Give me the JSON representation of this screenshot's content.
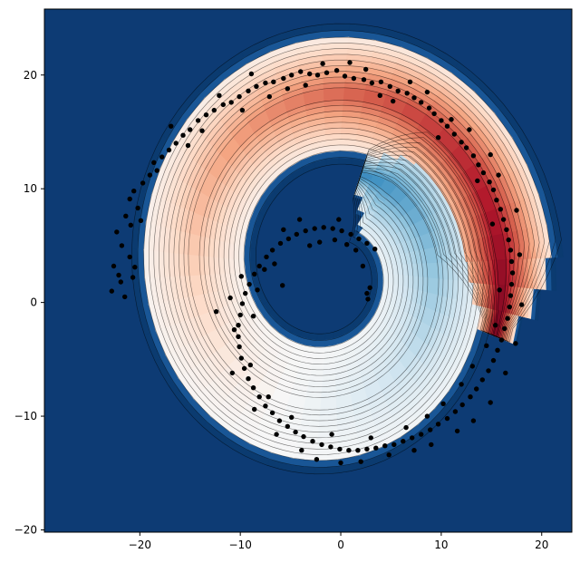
{
  "chart_data": {
    "type": "scatter",
    "subtype": "filled-contour-with-scatter",
    "title": "",
    "xlabel": "",
    "ylabel": "",
    "xlim": [
      -29.5,
      23.0
    ],
    "ylim": [
      -20.2,
      25.8
    ],
    "xticks": [
      -20,
      -10,
      0,
      10,
      20
    ],
    "yticks": [
      -20,
      -10,
      0,
      10,
      20
    ],
    "xtick_labels": [
      "−20",
      "−10",
      "0",
      "10",
      "20"
    ],
    "ytick_labels": [
      "−20",
      "−10",
      "0",
      "10",
      "20"
    ],
    "grid": false,
    "legend": "none",
    "colormap": "RdBu_r",
    "colors": {
      "background": "#0d3b74",
      "low": "#053061",
      "mid": "#f7f7f7",
      "high": "#67001f",
      "points": "#000000"
    },
    "spiral": {
      "center": [
        -1.0,
        3.0
      ],
      "inner_radius": 8.8,
      "outer_radius": 17.4,
      "start_angle_deg": 110,
      "end_angle_deg": 560,
      "value_start": 0.18,
      "value_end": 0.97
    },
    "points": [
      [
        -22.8,
        1.0
      ],
      [
        -22.1,
        2.4
      ],
      [
        -21.5,
        0.5
      ],
      [
        -22.6,
        3.2
      ],
      [
        -21.0,
        4.0
      ],
      [
        -20.5,
        3.1
      ],
      [
        -21.8,
        5.0
      ],
      [
        -22.3,
        6.2
      ],
      [
        -20.9,
        6.8
      ],
      [
        -21.4,
        7.6
      ],
      [
        -20.2,
        8.3
      ],
      [
        -21.0,
        9.1
      ],
      [
        -20.6,
        9.8
      ],
      [
        -19.7,
        10.5
      ],
      [
        -19.0,
        11.2
      ],
      [
        -18.6,
        12.3
      ],
      [
        -17.8,
        12.8
      ],
      [
        -17.1,
        13.4
      ],
      [
        -16.4,
        14.0
      ],
      [
        -15.7,
        14.7
      ],
      [
        -15.0,
        15.2
      ],
      [
        -14.2,
        16.0
      ],
      [
        -13.4,
        16.5
      ],
      [
        -12.6,
        16.9
      ],
      [
        -11.7,
        17.4
      ],
      [
        -10.9,
        17.6
      ],
      [
        -10.1,
        18.1
      ],
      [
        -9.2,
        18.6
      ],
      [
        -8.4,
        19.0
      ],
      [
        -7.5,
        19.3
      ],
      [
        -6.7,
        19.4
      ],
      [
        -5.7,
        19.7
      ],
      [
        -4.9,
        20.0
      ],
      [
        -4.0,
        20.3
      ],
      [
        -3.1,
        20.1
      ],
      [
        -2.3,
        20.0
      ],
      [
        -1.4,
        20.2
      ],
      [
        -0.4,
        20.4
      ],
      [
        0.4,
        19.9
      ],
      [
        1.3,
        19.7
      ],
      [
        2.3,
        19.6
      ],
      [
        3.1,
        19.3
      ],
      [
        4.0,
        19.4
      ],
      [
        4.9,
        19.0
      ],
      [
        5.7,
        18.6
      ],
      [
        6.6,
        18.4
      ],
      [
        7.3,
        18.0
      ],
      [
        8.0,
        17.6
      ],
      [
        8.8,
        17.1
      ],
      [
        9.3,
        16.6
      ],
      [
        10.0,
        16.0
      ],
      [
        10.6,
        15.5
      ],
      [
        11.3,
        14.8
      ],
      [
        12.0,
        14.1
      ],
      [
        12.5,
        13.6
      ],
      [
        13.2,
        12.9
      ],
      [
        13.7,
        12.1
      ],
      [
        14.2,
        11.4
      ],
      [
        14.8,
        10.6
      ],
      [
        15.2,
        9.9
      ],
      [
        15.5,
        9.0
      ],
      [
        15.9,
        8.2
      ],
      [
        16.2,
        7.3
      ],
      [
        16.5,
        6.4
      ],
      [
        16.7,
        5.5
      ],
      [
        16.9,
        4.6
      ],
      [
        17.0,
        3.6
      ],
      [
        17.1,
        2.6
      ],
      [
        17.0,
        1.6
      ],
      [
        16.9,
        0.6
      ],
      [
        16.8,
        -0.4
      ],
      [
        16.6,
        -1.4
      ],
      [
        16.3,
        -2.3
      ],
      [
        16.0,
        -3.3
      ],
      [
        15.6,
        -4.2
      ],
      [
        15.2,
        -5.1
      ],
      [
        14.7,
        -6.0
      ],
      [
        14.1,
        -6.8
      ],
      [
        13.5,
        -7.6
      ],
      [
        12.9,
        -8.3
      ],
      [
        12.1,
        -9.0
      ],
      [
        11.4,
        -9.6
      ],
      [
        10.6,
        -10.2
      ],
      [
        9.7,
        -10.7
      ],
      [
        8.9,
        -11.2
      ],
      [
        8.0,
        -11.6
      ],
      [
        7.1,
        -11.9
      ],
      [
        6.2,
        -12.2
      ],
      [
        5.3,
        -12.5
      ],
      [
        4.4,
        -12.6
      ],
      [
        3.5,
        -12.8
      ],
      [
        2.6,
        -12.9
      ],
      [
        1.7,
        -13.0
      ],
      [
        0.8,
        -13.0
      ],
      [
        -0.1,
        -12.9
      ],
      [
        -1.0,
        -12.7
      ],
      [
        -1.9,
        -12.5
      ],
      [
        -2.8,
        -12.2
      ],
      [
        -3.7,
        -11.8
      ],
      [
        -4.5,
        -11.4
      ],
      [
        -5.3,
        -10.9
      ],
      [
        -6.1,
        -10.4
      ],
      [
        -6.8,
        -9.7
      ],
      [
        -7.5,
        -9.1
      ],
      [
        -8.1,
        -8.3
      ],
      [
        -8.7,
        -7.5
      ],
      [
        -9.2,
        -6.7
      ],
      [
        -9.6,
        -5.8
      ],
      [
        -9.9,
        -4.9
      ],
      [
        -10.1,
        -3.9
      ],
      [
        -10.2,
        -3.0
      ],
      [
        -10.2,
        -2.0
      ],
      [
        -10.0,
        -1.1
      ],
      [
        -9.8,
        -0.1
      ],
      [
        -9.5,
        0.8
      ],
      [
        -9.1,
        1.6
      ],
      [
        -8.6,
        2.5
      ],
      [
        -8.1,
        3.2
      ],
      [
        -7.4,
        4.0
      ],
      [
        -6.8,
        4.6
      ],
      [
        -6.0,
        5.2
      ],
      [
        -5.2,
        5.6
      ],
      [
        -4.4,
        6.0
      ],
      [
        -3.5,
        6.3
      ],
      [
        -2.6,
        6.5
      ],
      [
        -1.7,
        6.6
      ],
      [
        -0.8,
        6.5
      ],
      [
        0.1,
        6.3
      ],
      [
        1.0,
        6.0
      ],
      [
        1.8,
        5.6
      ],
      [
        2.6,
        5.2
      ],
      [
        3.4,
        4.7
      ],
      [
        2.9,
        1.3
      ],
      [
        2.6,
        0.8
      ],
      [
        2.7,
        0.3
      ],
      [
        -21.9,
        1.8
      ],
      [
        -20.7,
        2.2
      ],
      [
        -19.9,
        7.2
      ],
      [
        -18.3,
        11.6
      ],
      [
        -16.9,
        15.5
      ],
      [
        -15.2,
        13.8
      ],
      [
        -13.8,
        15.1
      ],
      [
        -12.1,
        18.2
      ],
      [
        -9.8,
        16.9
      ],
      [
        -8.9,
        20.1
      ],
      [
        -7.1,
        18.1
      ],
      [
        -5.3,
        18.8
      ],
      [
        -3.5,
        19.1
      ],
      [
        -1.8,
        21.0
      ],
      [
        0.9,
        21.1
      ],
      [
        2.5,
        20.5
      ],
      [
        3.9,
        18.2
      ],
      [
        5.2,
        17.7
      ],
      [
        6.9,
        19.4
      ],
      [
        8.6,
        18.5
      ],
      [
        9.7,
        14.5
      ],
      [
        11.0,
        16.1
      ],
      [
        12.8,
        15.2
      ],
      [
        13.6,
        10.7
      ],
      [
        14.9,
        13.0
      ],
      [
        15.7,
        11.2
      ],
      [
        17.5,
        8.1
      ],
      [
        15.1,
        6.9
      ],
      [
        17.8,
        4.2
      ],
      [
        15.8,
        1.1
      ],
      [
        18.0,
        -0.2
      ],
      [
        15.4,
        -2.0
      ],
      [
        17.4,
        -3.6
      ],
      [
        14.5,
        -3.8
      ],
      [
        16.4,
        -6.2
      ],
      [
        13.1,
        -5.6
      ],
      [
        14.9,
        -8.8
      ],
      [
        12.0,
        -7.2
      ],
      [
        13.2,
        -10.4
      ],
      [
        10.2,
        -8.9
      ],
      [
        11.6,
        -11.3
      ],
      [
        8.6,
        -10.0
      ],
      [
        9.0,
        -12.5
      ],
      [
        6.5,
        -11.0
      ],
      [
        7.3,
        -13.0
      ],
      [
        4.8,
        -13.4
      ],
      [
        3.0,
        -11.9
      ],
      [
        2.0,
        -14.0
      ],
      [
        0.0,
        -14.1
      ],
      [
        -0.9,
        -11.6
      ],
      [
        -2.4,
        -13.8
      ],
      [
        -3.9,
        -13.0
      ],
      [
        -4.9,
        -10.1
      ],
      [
        -6.4,
        -11.6
      ],
      [
        -7.2,
        -8.3
      ],
      [
        -8.6,
        -9.4
      ],
      [
        -9.0,
        -5.5
      ],
      [
        -10.8,
        -6.2
      ],
      [
        -10.6,
        -2.4
      ],
      [
        -11.0,
        0.4
      ],
      [
        -8.7,
        -1.2
      ],
      [
        -9.9,
        2.3
      ],
      [
        -8.3,
        1.1
      ],
      [
        -7.6,
        2.9
      ],
      [
        -6.6,
        3.4
      ],
      [
        -5.7,
        6.4
      ],
      [
        -4.1,
        7.3
      ],
      [
        -2.1,
        5.3
      ],
      [
        -0.2,
        7.3
      ],
      [
        1.5,
        4.6
      ],
      [
        2.2,
        3.2
      ],
      [
        0.6,
        5.1
      ],
      [
        -0.6,
        5.5
      ],
      [
        -3.1,
        5.0
      ],
      [
        -5.8,
        1.5
      ],
      [
        -12.4,
        -0.8
      ]
    ]
  }
}
